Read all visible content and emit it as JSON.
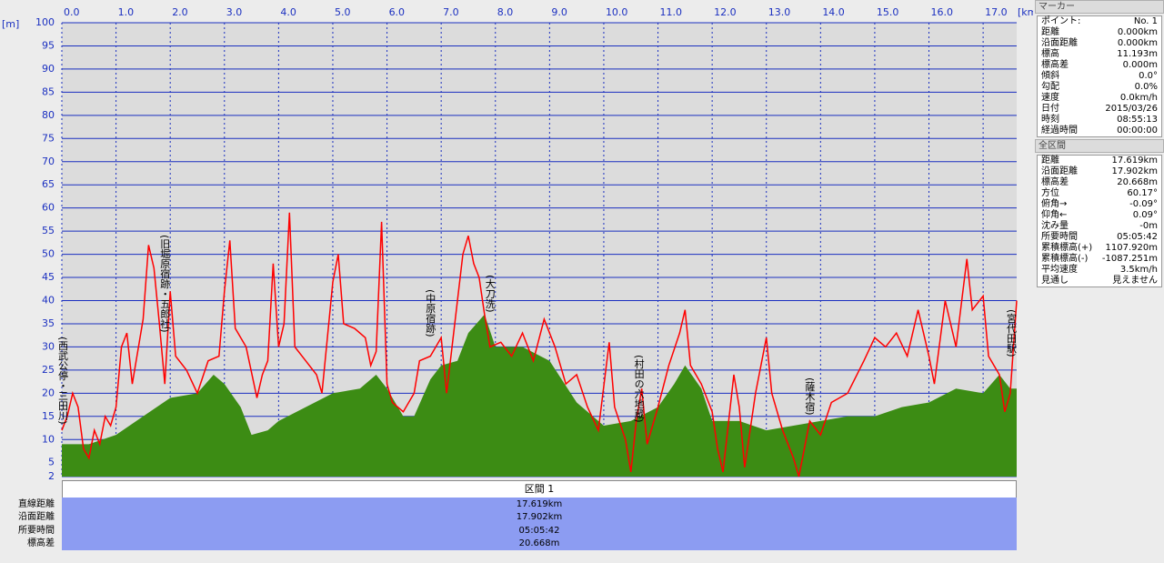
{
  "chart_data": {
    "type": "line",
    "y_unit": "[m]",
    "x_unit": "[km]",
    "xlim": [
      0,
      17.619
    ],
    "ylim": [
      2,
      100
    ],
    "xticks": [
      {
        "value": 0,
        "label": "0.0"
      },
      {
        "value": 1,
        "label": "1.0"
      },
      {
        "value": 2,
        "label": "2.0"
      },
      {
        "value": 3,
        "label": "3.0"
      },
      {
        "value": 4,
        "label": "4.0"
      },
      {
        "value": 5,
        "label": "5.0"
      },
      {
        "value": 6,
        "label": "6.0"
      },
      {
        "value": 7,
        "label": "7.0"
      },
      {
        "value": 8,
        "label": "8.0"
      },
      {
        "value": 9,
        "label": "9.0"
      },
      {
        "value": 10,
        "label": "10.0"
      },
      {
        "value": 11,
        "label": "11.0"
      },
      {
        "value": 12,
        "label": "12.0"
      },
      {
        "value": 13,
        "label": "13.0"
      },
      {
        "value": 14,
        "label": "14.0"
      },
      {
        "value": 15,
        "label": "15.0"
      },
      {
        "value": 16,
        "label": "16.0"
      },
      {
        "value": 17,
        "label": "17.0"
      }
    ],
    "yticks": [
      2,
      5,
      10,
      15,
      20,
      25,
      30,
      35,
      40,
      45,
      50,
      55,
      60,
      65,
      70,
      75,
      80,
      85,
      90,
      95,
      100
    ],
    "grid": true,
    "series": [
      {
        "style": "area",
        "color": "#3c8c14",
        "x": [
          0,
          0.5,
          1.0,
          1.5,
          2.0,
          2.5,
          2.8,
          3.0,
          3.3,
          3.5,
          3.8,
          4.0,
          4.5,
          5.0,
          5.5,
          5.8,
          6.0,
          6.3,
          6.5,
          6.8,
          7.0,
          7.3,
          7.5,
          7.8,
          8.0,
          8.5,
          9.0,
          9.5,
          10.0,
          10.5,
          11.0,
          11.3,
          11.5,
          11.8,
          12.0,
          12.5,
          13.0,
          13.5,
          14.0,
          14.5,
          15.0,
          15.5,
          16.0,
          16.5,
          17.0,
          17.3,
          17.5,
          17.619
        ],
        "values": [
          9,
          9,
          11,
          15,
          19,
          20,
          24,
          22,
          17,
          11,
          12,
          14,
          17,
          20,
          21,
          24,
          21,
          15,
          15,
          23,
          26,
          27,
          33,
          37,
          30,
          30,
          27,
          18,
          13,
          14,
          17,
          22,
          26,
          21,
          14,
          14,
          12,
          13,
          14,
          15,
          15,
          17,
          18,
          21,
          20,
          24,
          21,
          21
        ]
      },
      {
        "style": "line",
        "color": "#ff0000",
        "x": [
          0,
          0.1,
          0.2,
          0.3,
          0.4,
          0.5,
          0.6,
          0.7,
          0.8,
          0.9,
          1.0,
          1.1,
          1.2,
          1.3,
          1.4,
          1.5,
          1.6,
          1.7,
          1.8,
          1.9,
          2.0,
          2.1,
          2.3,
          2.5,
          2.7,
          2.9,
          3.0,
          3.1,
          3.2,
          3.4,
          3.6,
          3.7,
          3.8,
          3.9,
          4.0,
          4.1,
          4.2,
          4.3,
          4.5,
          4.7,
          4.8,
          5.0,
          5.1,
          5.2,
          5.4,
          5.6,
          5.7,
          5.8,
          5.9,
          6.0,
          6.1,
          6.3,
          6.5,
          6.6,
          6.8,
          7.0,
          7.1,
          7.3,
          7.4,
          7.5,
          7.6,
          7.7,
          7.8,
          7.9,
          8.1,
          8.3,
          8.5,
          8.7,
          8.9,
          9.1,
          9.3,
          9.5,
          9.7,
          9.9,
          10.1,
          10.2,
          10.4,
          10.5,
          10.6,
          10.7,
          10.8,
          11.0,
          11.2,
          11.4,
          11.5,
          11.6,
          11.8,
          12.0,
          12.1,
          12.2,
          12.4,
          12.5,
          12.6,
          12.8,
          13.0,
          13.1,
          13.3,
          13.5,
          13.6,
          13.8,
          14.0,
          14.2,
          14.5,
          14.8,
          15.0,
          15.2,
          15.4,
          15.6,
          15.8,
          16.0,
          16.1,
          16.3,
          16.5,
          16.7,
          16.8,
          17.0,
          17.1,
          17.3,
          17.4,
          17.5,
          17.619
        ],
        "values": [
          12,
          15,
          20,
          17,
          8,
          6,
          12,
          9,
          15,
          13,
          17,
          30,
          33,
          22,
          29,
          36,
          52,
          47,
          35,
          22,
          42,
          28,
          25,
          20,
          27,
          28,
          42,
          53,
          34,
          30,
          19,
          24,
          27,
          48,
          30,
          35,
          59,
          30,
          27,
          24,
          20,
          44,
          50,
          35,
          34,
          32,
          26,
          29,
          57,
          22,
          18,
          16,
          20,
          27,
          28,
          32,
          20,
          40,
          50,
          54,
          48,
          45,
          37,
          30,
          31,
          28,
          33,
          27,
          36,
          30,
          22,
          24,
          17,
          12,
          31,
          17,
          10,
          3,
          14,
          21,
          9,
          17,
          26,
          33,
          38,
          26,
          22,
          16,
          8,
          3,
          24,
          17,
          4,
          20,
          32,
          20,
          12,
          6,
          2,
          14,
          11,
          18,
          20,
          27,
          32,
          30,
          33,
          28,
          38,
          28,
          22,
          40,
          30,
          49,
          38,
          41,
          28,
          24,
          16,
          20,
          40
        ]
      }
    ],
    "annotations": [
      {
        "x": 0,
        "text": "(西武公停・三田川)"
      },
      {
        "x": 1.9,
        "text": "(旧堀原宿跡・五郎社)"
      },
      {
        "x": 6.8,
        "text": "(中原宿跡)"
      },
      {
        "x": 7.9,
        "text": "(大刀洗)"
      },
      {
        "x": 10.65,
        "text": "(村田の六地蔵)"
      },
      {
        "x": 13.8,
        "text": "(薩木宿)"
      },
      {
        "x": 17.619,
        "text": "(宮代田駅)"
      }
    ]
  },
  "section_table": {
    "header": "区間 1",
    "rows": [
      [
        "直線距離",
        "17.619km"
      ],
      [
        "沿面距離",
        "17.902km"
      ],
      [
        "所要時間",
        "05:05:42"
      ],
      [
        "標高差",
        "20.668m"
      ]
    ]
  },
  "marker_panel": {
    "title": "マーカー",
    "rows": [
      [
        "ポイント:",
        "No. 1"
      ],
      [
        "距離",
        "0.000km"
      ],
      [
        "沿面距離",
        "0.000km"
      ],
      [
        "標高",
        "11.193m"
      ],
      [
        "標高差",
        "0.000m"
      ],
      [
        "傾斜",
        "0.0°"
      ],
      [
        "勾配",
        "0.0%"
      ],
      [
        "速度",
        "0.0km/h"
      ],
      [
        "日付",
        "2015/03/26"
      ],
      [
        "時刻",
        "08:55:13"
      ],
      [
        "経過時間",
        "00:00:00"
      ]
    ]
  },
  "total_panel": {
    "title": "全区間",
    "rows": [
      [
        "距離",
        "17.619km"
      ],
      [
        "沿面距離",
        "17.902km"
      ],
      [
        "標高差",
        "20.668m"
      ],
      [
        "方位",
        "60.17°"
      ],
      [
        "俯角→",
        "-0.09°"
      ],
      [
        "仰角←",
        "0.09°"
      ],
      [
        "沈み量",
        "-0m"
      ],
      [
        "所要時間",
        "05:05:42"
      ],
      [
        "累積標高(+)",
        "1107.920m"
      ],
      [
        "累積標高(-)",
        "-1087.251m"
      ],
      [
        "平均速度",
        "3.5km/h"
      ],
      [
        "見通し",
        "見えません"
      ]
    ]
  }
}
